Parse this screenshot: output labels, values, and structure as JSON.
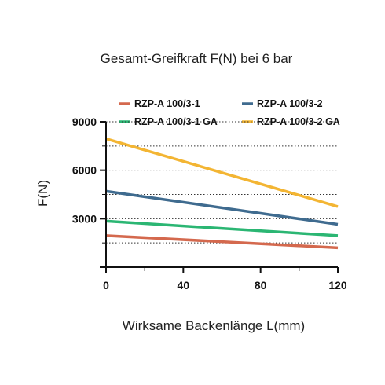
{
  "chart_data": {
    "type": "line",
    "title": "Gesamt-Greifkraft F(N) bei 6 bar",
    "xlabel": "Wirksame Backenlänge L(mm)",
    "ylabel": "F(N)",
    "xlim": [
      0,
      120
    ],
    "ylim": [
      0,
      9000
    ],
    "xticks": [
      0,
      40,
      80,
      120
    ],
    "yticks_labeled": [
      3000,
      6000,
      9000
    ],
    "grid": "dotted horizontal",
    "legend_position": "top",
    "series": [
      {
        "name": "RZP-A 100/3-1",
        "color": "#d4694e",
        "x": [
          0,
          120
        ],
        "y": [
          1950,
          1200
        ]
      },
      {
        "name": "RZP-A 100/3-2",
        "color": "#3f6b8f",
        "x": [
          0,
          120
        ],
        "y": [
          4700,
          2650
        ]
      },
      {
        "name": "RZP-A 100/3-1 GA",
        "color": "#2bb673",
        "x": [
          0,
          120
        ],
        "y": [
          2850,
          1950
        ]
      },
      {
        "name": "RZP-A 100/3-2 GA",
        "color": "#f3b533",
        "x": [
          0,
          120
        ],
        "y": [
          7950,
          3750
        ]
      }
    ]
  }
}
